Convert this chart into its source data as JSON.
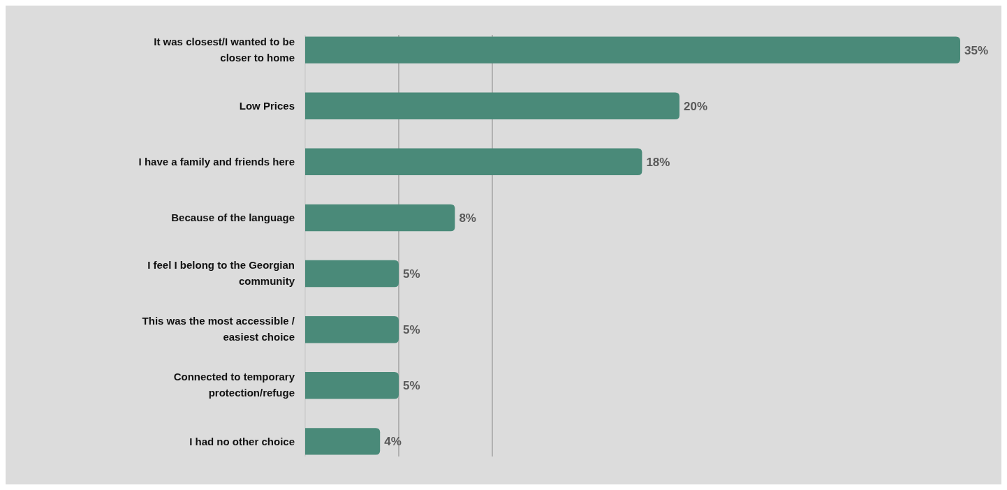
{
  "chart_data": {
    "type": "bar",
    "orientation": "horizontal",
    "categories": [
      "It was closest/I wanted to be closer to home",
      "Low Prices",
      "I have a family and friends here",
      "Because of the language",
      "I feel I belong to the Georgian community",
      "This was the most accessible / easiest choice",
      "Connected to temporary protection/refuge",
      "I had no other choice"
    ],
    "values": [
      35,
      20,
      18,
      8,
      5,
      5,
      5,
      4
    ],
    "value_labels": [
      "35%",
      "20%",
      "18%",
      "8%",
      "5%",
      "5%",
      "5%",
      "4%"
    ],
    "color": "#4a8a79",
    "xlim": [
      0,
      35
    ],
    "ref_lines": [
      {
        "axis": "x",
        "value": 5,
        "color": "#999999"
      },
      {
        "axis": "x",
        "value": 10,
        "color": "#999999"
      }
    ]
  }
}
